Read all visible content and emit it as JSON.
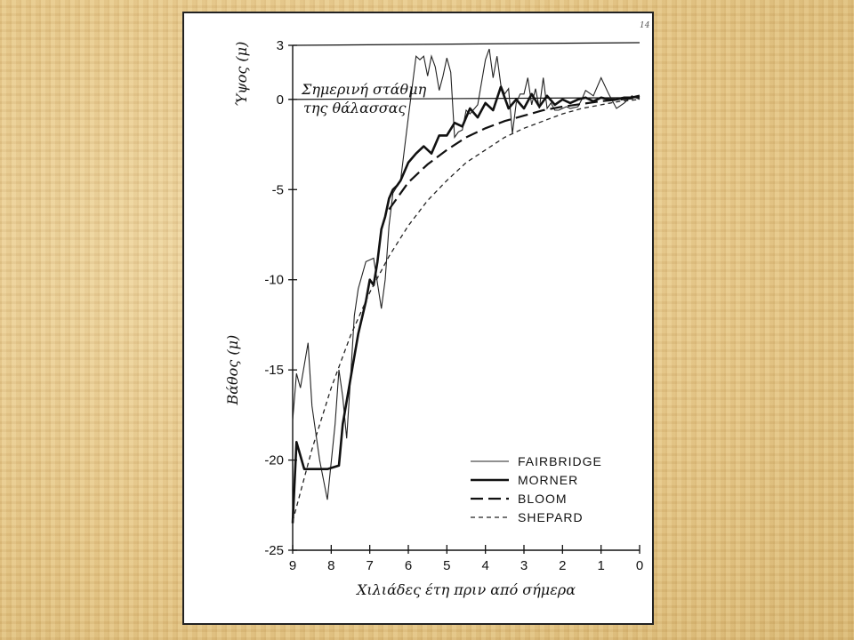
{
  "page_number": "14",
  "chart_data": {
    "type": "line",
    "title": "",
    "xlabel": "Χιλιάδες έτη πριν από σήμερα",
    "ylabel_top": "Ύψος (μ)",
    "ylabel_bottom": "Βάθος (μ)",
    "xlim": [
      9,
      0
    ],
    "ylim": [
      -25,
      3
    ],
    "x_ticks": [
      9,
      8,
      7,
      6,
      5,
      4,
      3,
      2,
      1,
      0
    ],
    "y_ticks": [
      3,
      0,
      -5,
      -10,
      -15,
      -20,
      -25
    ],
    "reference_line": {
      "y": 0,
      "label_line1": "Σημερινή στάθμη",
      "label_line2": "της θάλασσας"
    },
    "legend_position": "bottom-right",
    "series": [
      {
        "name": "FAIRBRIDGE",
        "style": "thin-solid",
        "x": [
          9.0,
          8.9,
          8.8,
          8.6,
          8.5,
          8.3,
          8.1,
          7.9,
          7.8,
          7.7,
          7.6,
          7.5,
          7.4,
          7.3,
          7.1,
          6.9,
          6.7,
          6.6,
          6.5,
          6.4,
          6.2,
          6.0,
          5.8,
          5.7,
          5.6,
          5.5,
          5.4,
          5.3,
          5.2,
          5.1,
          5.0,
          4.9,
          4.8,
          4.7,
          4.6,
          4.5,
          4.4,
          4.2,
          4.0,
          3.9,
          3.8,
          3.7,
          3.6,
          3.5,
          3.4,
          3.3,
          3.2,
          3.1,
          3.0,
          2.9,
          2.8,
          2.7,
          2.6,
          2.5,
          2.4,
          2.3,
          2.2,
          2.1,
          2.0,
          1.9,
          1.8,
          1.6,
          1.5,
          1.4,
          1.2,
          1.0,
          0.8,
          0.6,
          0.4,
          0.2,
          0.0
        ],
        "y": [
          -17.8,
          -15.2,
          -16.0,
          -13.5,
          -17.0,
          -20.0,
          -22.2,
          -18.0,
          -15.0,
          -16.5,
          -18.8,
          -15.5,
          -12.0,
          -10.5,
          -9.0,
          -8.8,
          -11.6,
          -10.0,
          -7.0,
          -5.2,
          -4.5,
          -1.0,
          2.4,
          2.2,
          2.4,
          1.3,
          2.4,
          1.8,
          0.5,
          1.3,
          2.3,
          1.5,
          -2.1,
          -1.8,
          -1.7,
          -0.6,
          -0.8,
          -0.3,
          2.2,
          2.8,
          1.2,
          2.4,
          0.8,
          0.3,
          0.6,
          -1.9,
          -0.2,
          0.3,
          0.3,
          1.2,
          -0.3,
          0.6,
          -0.5,
          1.2,
          -0.5,
          -0.2,
          -0.6,
          -0.6,
          -0.5,
          -0.4,
          -0.5,
          -0.4,
          0.0,
          0.5,
          0.2,
          1.2,
          0.3,
          -0.5,
          -0.2,
          0.2,
          0.0
        ]
      },
      {
        "name": "MORNER",
        "style": "thick-solid",
        "x": [
          9.0,
          8.9,
          8.7,
          8.5,
          8.3,
          8.1,
          7.8,
          7.7,
          7.5,
          7.3,
          7.1,
          7.0,
          6.9,
          6.8,
          6.7,
          6.6,
          6.5,
          6.4,
          6.3,
          6.2,
          6.0,
          5.8,
          5.6,
          5.4,
          5.2,
          5.0,
          4.8,
          4.6,
          4.4,
          4.2,
          4.0,
          3.8,
          3.6,
          3.4,
          3.2,
          3.0,
          2.8,
          2.6,
          2.4,
          2.2,
          2.0,
          1.8,
          1.6,
          1.4,
          1.2,
          1.0,
          0.8,
          0.6,
          0.4,
          0.2,
          0.0
        ],
        "y": [
          -23.5,
          -19.0,
          -20.5,
          -20.5,
          -20.5,
          -20.5,
          -20.3,
          -18.0,
          -15.5,
          -13.0,
          -11.2,
          -10.0,
          -10.3,
          -9.0,
          -7.2,
          -6.5,
          -5.5,
          -5.0,
          -4.8,
          -4.5,
          -3.5,
          -3.0,
          -2.6,
          -3.0,
          -2.0,
          -2.0,
          -1.3,
          -1.5,
          -0.5,
          -1.0,
          -0.2,
          -0.6,
          0.7,
          -0.5,
          0.0,
          -0.5,
          0.3,
          -0.4,
          0.2,
          -0.3,
          0.0,
          -0.2,
          0.0,
          0.1,
          -0.1,
          0.1,
          0.0,
          0.0,
          0.1,
          0.1,
          0.2
        ]
      },
      {
        "name": "BLOOM",
        "style": "long-dash",
        "x": [
          6.5,
          6.0,
          5.5,
          5.0,
          4.5,
          4.0,
          3.5,
          3.0,
          2.5,
          2.0,
          1.5,
          1.0,
          0.5,
          0.0
        ],
        "y": [
          -6.1,
          -4.6,
          -3.6,
          -2.8,
          -2.1,
          -1.6,
          -1.2,
          -0.9,
          -0.6,
          -0.4,
          -0.25,
          -0.1,
          0.0,
          0.1
        ]
      },
      {
        "name": "SHEPARD",
        "style": "short-dash",
        "x": [
          9.0,
          8.5,
          8.0,
          7.5,
          7.0,
          6.5,
          6.0,
          5.5,
          5.0,
          4.5,
          4.0,
          3.5,
          3.0,
          2.5,
          2.0,
          1.5,
          1.0,
          0.5,
          0.0
        ],
        "y": [
          -23.4,
          -19.4,
          -16.0,
          -13.1,
          -10.7,
          -8.7,
          -7.0,
          -5.6,
          -4.5,
          -3.5,
          -2.8,
          -2.1,
          -1.6,
          -1.2,
          -0.8,
          -0.5,
          -0.3,
          -0.1,
          0.0
        ]
      }
    ]
  }
}
